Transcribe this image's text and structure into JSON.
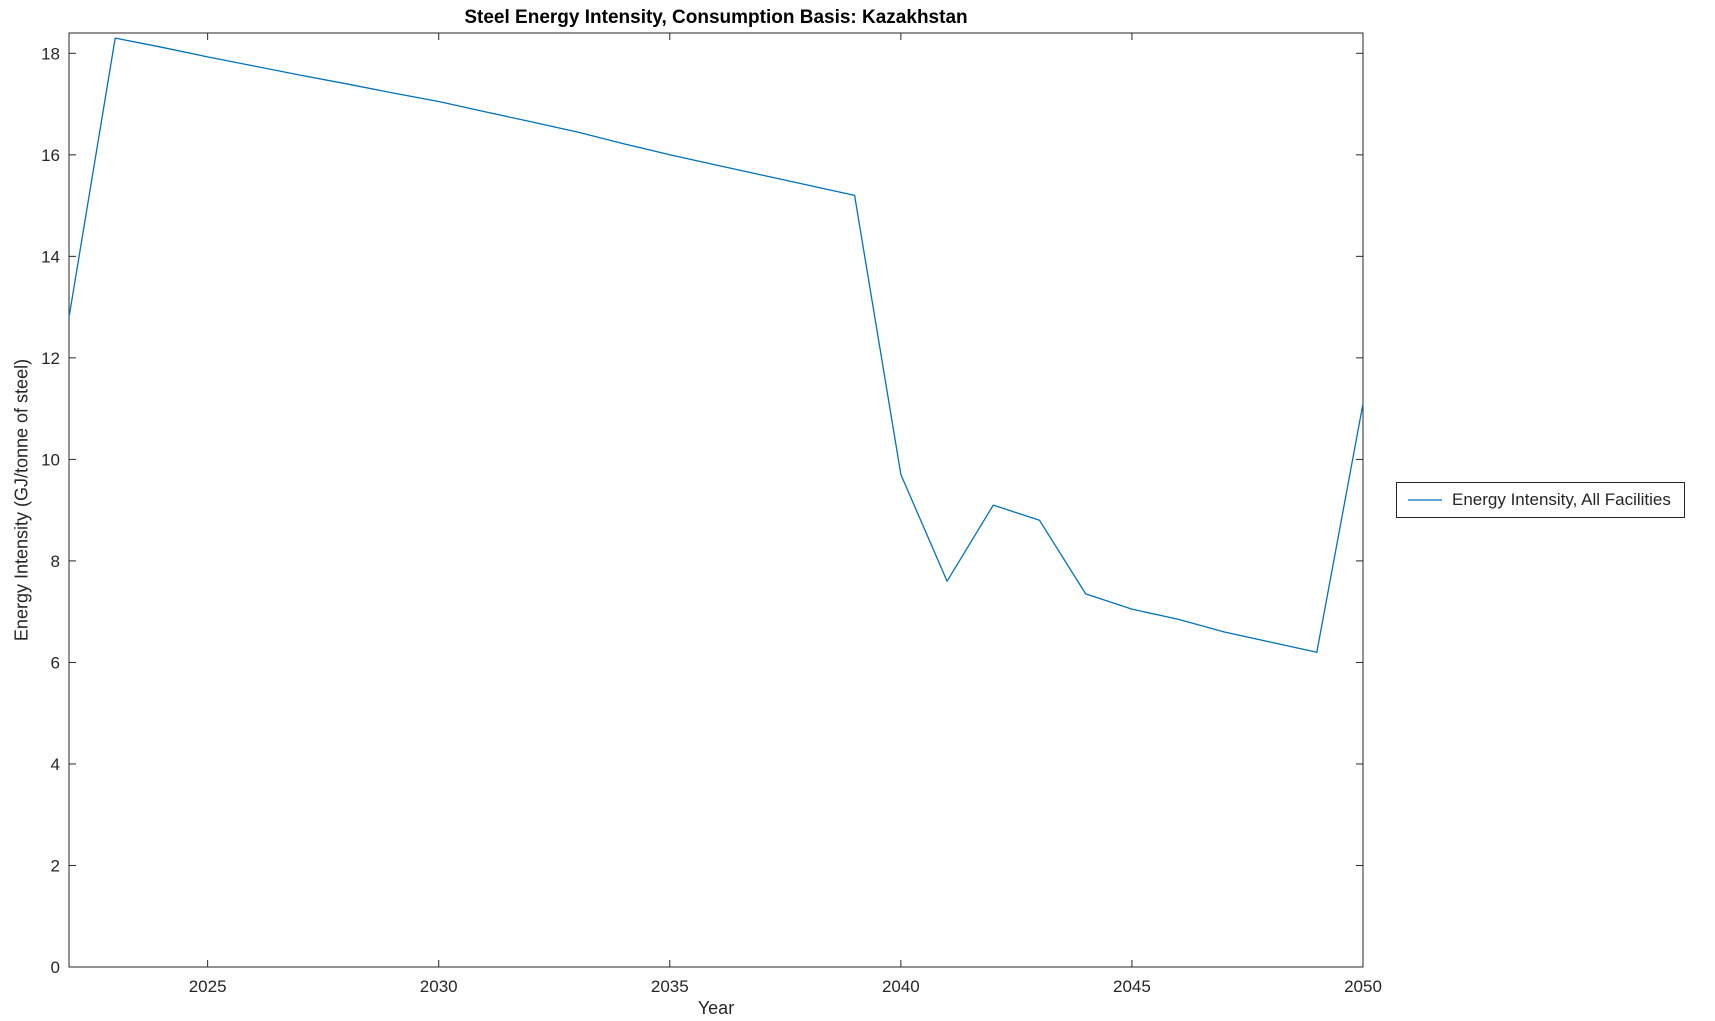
{
  "chart_data": {
    "type": "line",
    "title": "Steel Energy Intensity, Consumption Basis: Kazakhstan",
    "xlabel": "Year",
    "ylabel": "Energy Intensity (GJ/tonne of steel)",
    "xlim": [
      2022,
      2050
    ],
    "ylim": [
      0,
      18.4
    ],
    "xticks": [
      2025,
      2030,
      2035,
      2040,
      2045,
      2050
    ],
    "yticks": [
      0,
      2,
      4,
      6,
      8,
      10,
      12,
      14,
      16,
      18
    ],
    "grid": false,
    "legend_position": "right-outside",
    "axis_color": "#262626",
    "x": [
      2022,
      2023,
      2024,
      2025,
      2026,
      2027,
      2028,
      2029,
      2030,
      2031,
      2032,
      2033,
      2034,
      2035,
      2036,
      2037,
      2038,
      2039,
      2040,
      2041,
      2042,
      2043,
      2044,
      2045,
      2046,
      2047,
      2048,
      2049,
      2050
    ],
    "series": [
      {
        "name": "Energy Intensity, All Facilities",
        "color": "#0072BD",
        "values": [
          12.8,
          18.3,
          18.12,
          17.93,
          17.75,
          17.57,
          17.4,
          17.22,
          17.05,
          16.85,
          16.65,
          16.45,
          16.22,
          16.0,
          15.8,
          15.6,
          15.4,
          15.2,
          9.7,
          7.6,
          9.1,
          8.8,
          7.35,
          7.05,
          6.85,
          6.6,
          6.4,
          6.2,
          11.1
        ]
      }
    ]
  }
}
